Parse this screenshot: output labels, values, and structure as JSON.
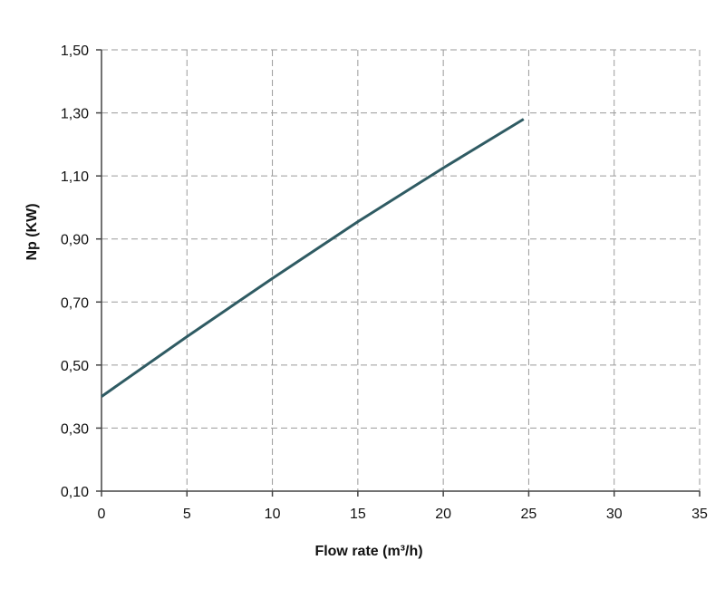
{
  "chart_data": {
    "type": "line",
    "xlabel": "Flow rate (m³/h)",
    "ylabel": "Np (KW)",
    "xlim": [
      0,
      35
    ],
    "ylim": [
      0.1,
      1.5
    ],
    "x_ticks": [
      {
        "value": 0,
        "label": "0"
      },
      {
        "value": 5,
        "label": "5"
      },
      {
        "value": 10,
        "label": "10"
      },
      {
        "value": 15,
        "label": "15"
      },
      {
        "value": 20,
        "label": "20"
      },
      {
        "value": 25,
        "label": "25"
      },
      {
        "value": 30,
        "label": "30"
      },
      {
        "value": 35,
        "label": "35"
      }
    ],
    "y_ticks": [
      {
        "value": 0.1,
        "label": "0,10"
      },
      {
        "value": 0.3,
        "label": "0,30"
      },
      {
        "value": 0.5,
        "label": "0,50"
      },
      {
        "value": 0.7,
        "label": "0,70"
      },
      {
        "value": 0.9,
        "label": "0,90"
      },
      {
        "value": 1.1,
        "label": "1,10"
      },
      {
        "value": 1.3,
        "label": "1,30"
      },
      {
        "value": 1.5,
        "label": "1,50"
      }
    ],
    "grid": true,
    "series": [
      {
        "color": "#2f5b63",
        "x": [
          0,
          5,
          10,
          15,
          20,
          24.7
        ],
        "y": [
          0.4,
          0.59,
          0.775,
          0.955,
          1.125,
          1.28
        ]
      }
    ]
  }
}
